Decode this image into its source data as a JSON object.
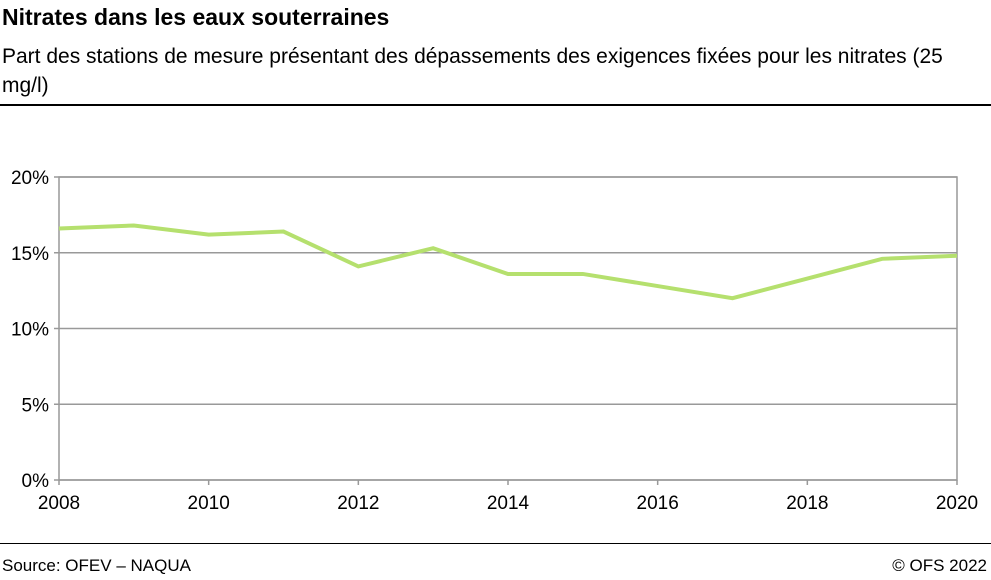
{
  "title": "Nitrates dans les eaux souterraines",
  "subtitle": "Part des stations de mesure présentant des dépassements des exigences fixées pour les nitrates (25 mg/l)",
  "source": "Source: OFEV – NAQUA",
  "copyright": "© OFS 2022",
  "chart_data": {
    "type": "line",
    "x": [
      2008,
      2009,
      2010,
      2011,
      2012,
      2013,
      2014,
      2015,
      2016,
      2017,
      2018,
      2019,
      2020
    ],
    "series": [
      {
        "values": [
          16.6,
          16.8,
          16.2,
          16.4,
          14.1,
          15.3,
          13.6,
          13.6,
          12.8,
          12.0,
          13.3,
          14.6,
          14.8
        ],
        "color": "#b5e06e"
      }
    ],
    "xlim": [
      2008,
      2020
    ],
    "ylim": [
      0,
      20
    ],
    "xticks": [
      "2008",
      "2010",
      "2012",
      "2014",
      "2016",
      "2018",
      "2020"
    ],
    "yticks": [
      "0%",
      "5%",
      "10%",
      "15%",
      "20%"
    ],
    "grid": true
  }
}
